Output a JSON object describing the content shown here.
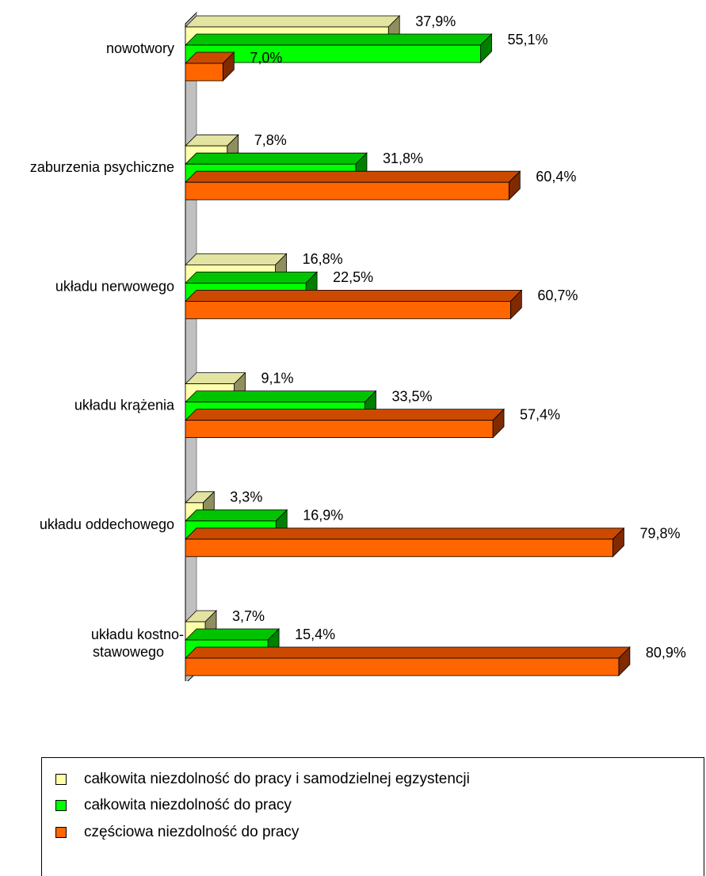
{
  "chart_data": {
    "type": "bar",
    "orientation": "horizontal",
    "style": "3d",
    "categories": [
      "nowotwory",
      "zaburzenia psychiczne",
      "układu nerwowego",
      "układu krążenia",
      "układu oddechowego",
      "układu kostno-stawowego"
    ],
    "category_lines": [
      [
        "nowotwory"
      ],
      [
        "zaburzenia psychiczne"
      ],
      [
        "układu nerwowego"
      ],
      [
        "układu krążenia"
      ],
      [
        "układu oddechowego"
      ],
      [
        "układu kostno-",
        "stawowego"
      ]
    ],
    "series": [
      {
        "name": "całkowita niezdolność do pracy i samodzielnej egzystencji",
        "values": [
          37.9,
          7.8,
          16.8,
          9.1,
          3.3,
          3.7
        ],
        "labels": [
          "37,9%",
          "7,8%",
          "16,8%",
          "9,1%",
          "3,3%",
          "3,7%"
        ],
        "color": "#FFFFAA",
        "top_color": "#E3E3A2",
        "side_color": "#8F8F5E"
      },
      {
        "name": "całkowita niezdolność do pracy",
        "values": [
          55.1,
          31.8,
          22.5,
          33.5,
          16.9,
          15.4
        ],
        "labels": [
          "55,1%",
          "31,8%",
          "22,5%",
          "33,5%",
          "16,9%",
          "15,4%"
        ],
        "color": "#00FF00",
        "top_color": "#00C400",
        "side_color": "#008000"
      },
      {
        "name": "częściowa niezdolność do pracy",
        "values": [
          7.0,
          60.4,
          60.7,
          57.4,
          79.8,
          80.9
        ],
        "labels": [
          "7,0%",
          "60,4%",
          "60,7%",
          "57,4%",
          "79,8%",
          "80,9%"
        ],
        "color": "#FF6600",
        "top_color": "#CC4A00",
        "side_color": "#7F2A00"
      }
    ],
    "xlim": [
      0,
      100
    ],
    "grid": false,
    "legend_position": "bottom"
  }
}
